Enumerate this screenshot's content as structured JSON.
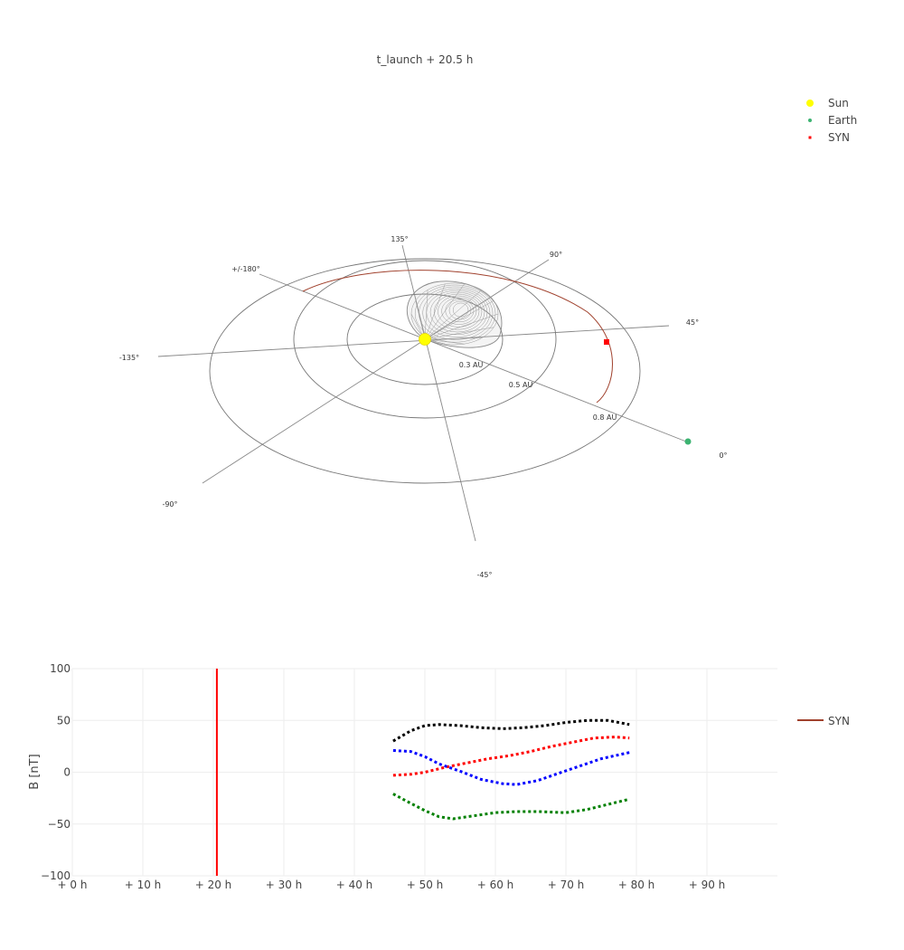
{
  "title": "t_launch + 20.5 h",
  "legend_top": [
    {
      "name": "Sun",
      "color": "#ffff00",
      "symbol": "big-dot"
    },
    {
      "name": "Earth",
      "color": "#3cb371",
      "symbol": "dot"
    },
    {
      "name": "SYN",
      "color": "#ff0000",
      "symbol": "square"
    }
  ],
  "polar_3d": {
    "angle_labels": [
      "135°",
      "90°",
      "+/-180°",
      "45°",
      "-135°",
      "0°",
      "-90°",
      "-45°"
    ],
    "radius_labels": [
      "0.3 AU",
      "0.5 AU",
      "0.8 AU"
    ],
    "colors": {
      "grid": "#888888",
      "orbit": "#a0412d",
      "cme": "#9a9a9a"
    }
  },
  "chart_data": {
    "type": "line",
    "ylabel": "B [nT]",
    "xlabel": "",
    "ylim": [
      -100,
      100
    ],
    "xlim": [
      0,
      100
    ],
    "y_ticks": [
      "100",
      "50",
      "0",
      "−50",
      "−100"
    ],
    "y_tick_values": [
      100,
      50,
      0,
      -50,
      -100
    ],
    "x_ticks": [
      "+ 0 h",
      "+ 10 h",
      "+ 20 h",
      "+ 30 h",
      "+ 40 h",
      "+ 50 h",
      "+ 60 h",
      "+ 70 h",
      "+ 80 h",
      "+ 90 h"
    ],
    "x_tick_values": [
      0,
      10,
      20,
      30,
      40,
      50,
      60,
      70,
      80,
      90
    ],
    "grid": true,
    "legend": {
      "name": "SYN",
      "color": "#a0412d",
      "placement": "right"
    },
    "current_time": {
      "x": 20.5,
      "color": "#ff0000"
    },
    "series": [
      {
        "color": "#000000",
        "style": "dotted",
        "x": [
          45.5,
          48,
          50,
          52,
          55,
          58,
          61,
          64,
          67,
          70,
          73,
          76,
          79
        ],
        "y": [
          30,
          40,
          45,
          46,
          45,
          43,
          42,
          43,
          45,
          48,
          50,
          50,
          46
        ]
      },
      {
        "color": "#ff0000",
        "style": "dotted",
        "x": [
          45.5,
          48,
          50,
          53,
          56,
          59,
          62,
          65,
          68,
          71,
          74,
          77,
          79
        ],
        "y": [
          -3,
          -2,
          0,
          5,
          9,
          13,
          16,
          20,
          25,
          29,
          33,
          34,
          33
        ]
      },
      {
        "color": "#0000ff",
        "style": "dotted",
        "x": [
          45.5,
          48,
          50,
          52,
          55,
          58,
          61,
          63,
          66,
          69,
          72,
          75,
          79
        ],
        "y": [
          21,
          20,
          15,
          8,
          1,
          -7,
          -11,
          -12,
          -8,
          -1,
          6,
          13,
          19
        ]
      },
      {
        "color": "#008000",
        "style": "dotted",
        "x": [
          45.5,
          48,
          50,
          52,
          54,
          57,
          60,
          63,
          66,
          70,
          73,
          76,
          79
        ],
        "y": [
          -21,
          -30,
          -37,
          -43,
          -45,
          -42,
          -39,
          -38,
          -38,
          -39,
          -36,
          -31,
          -26
        ]
      }
    ]
  }
}
